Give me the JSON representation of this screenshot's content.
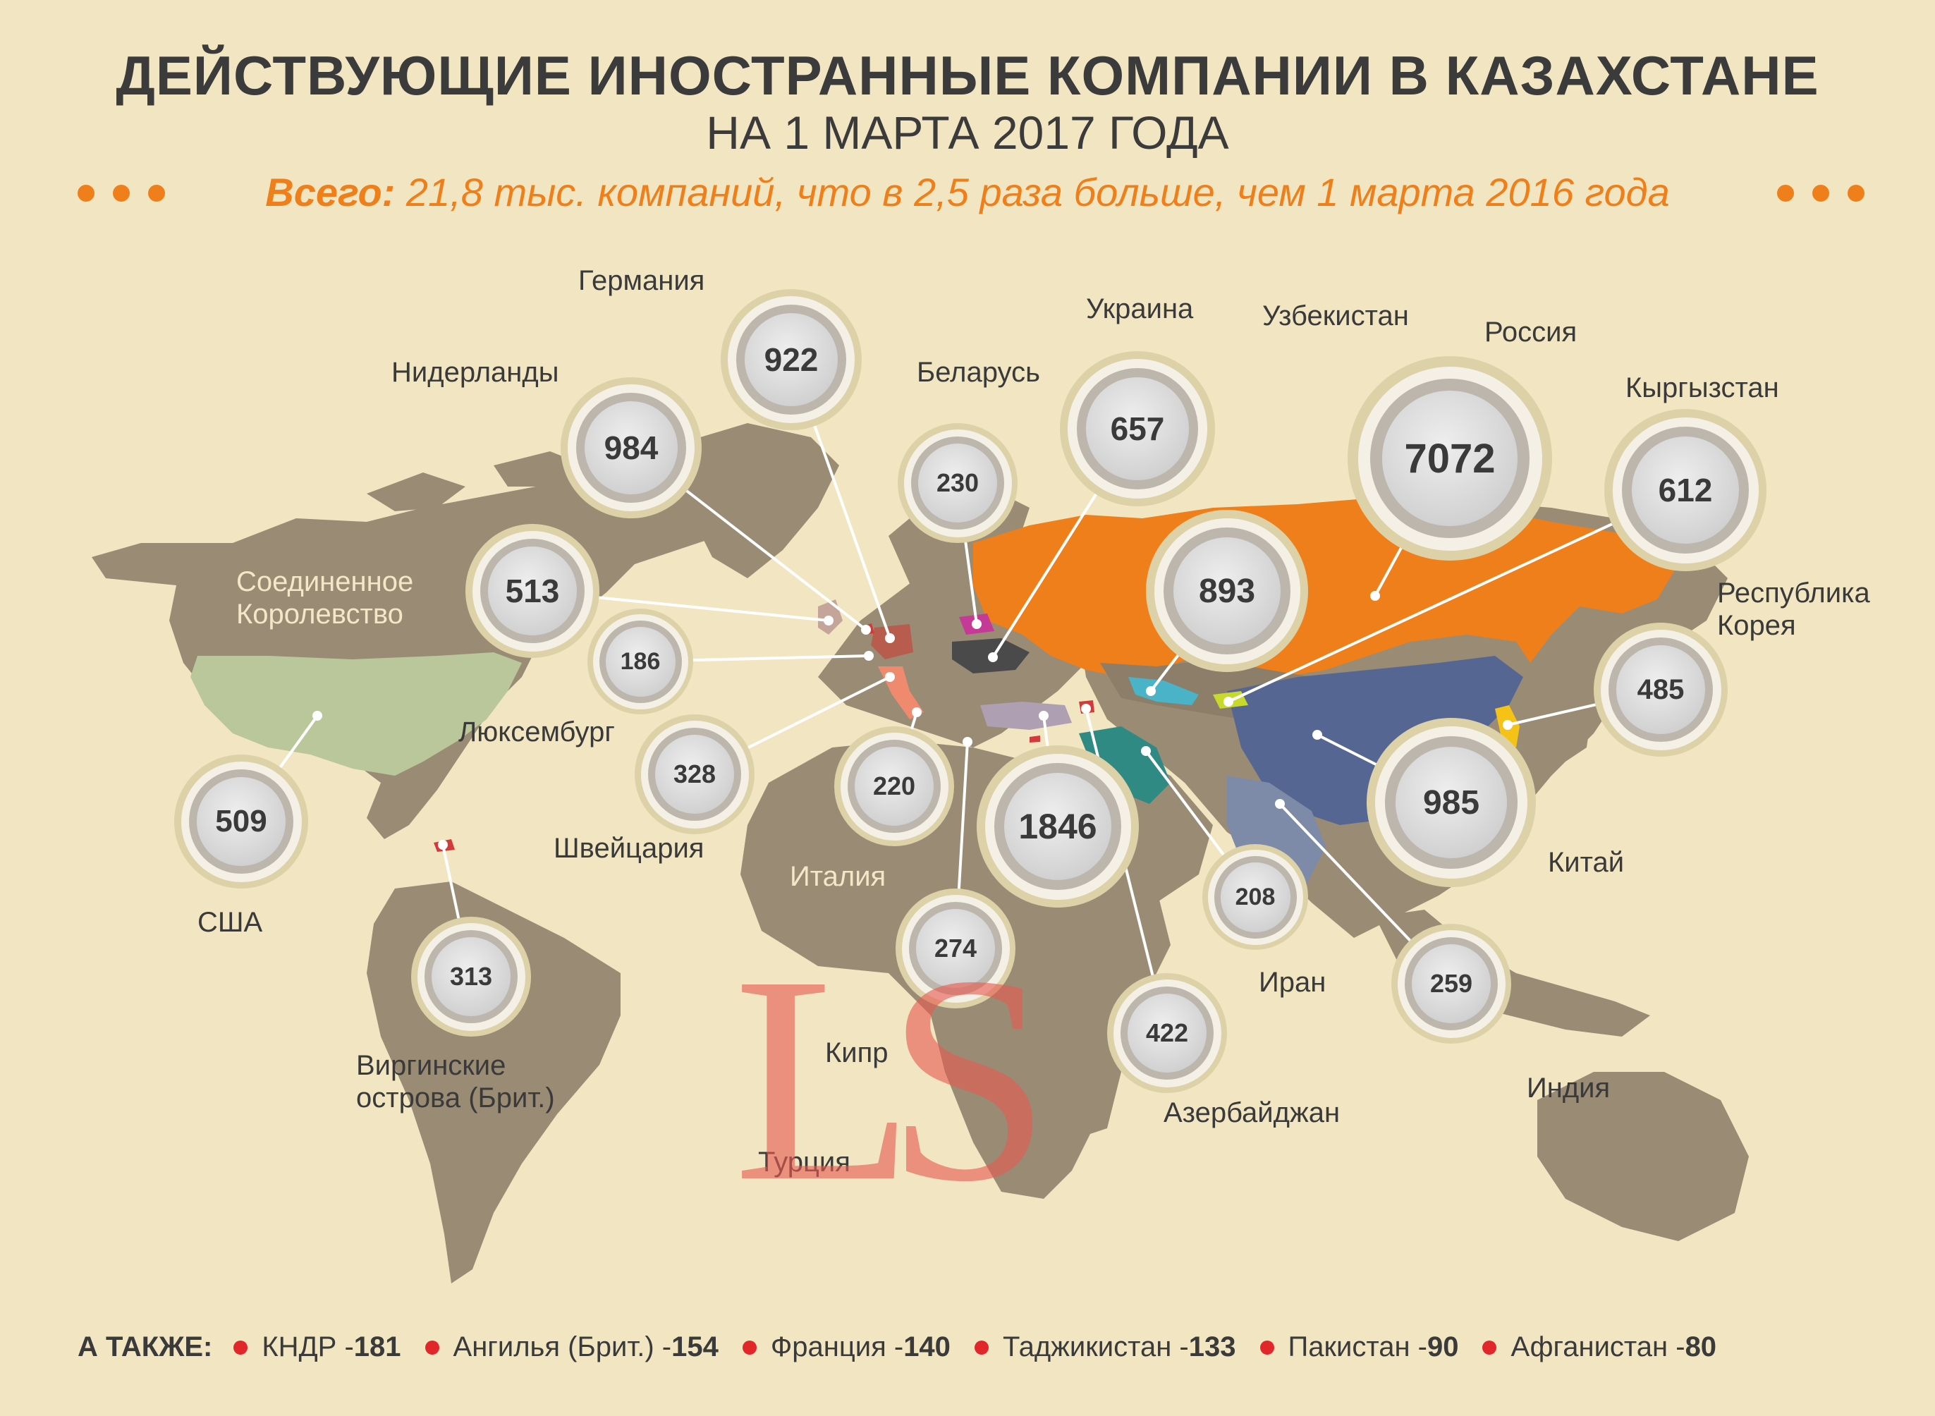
{
  "title": "ДЕЙСТВУЮЩИЕ ИНОСТРАННЫЕ КОМПАНИИ В КАЗАХСТАНЕ",
  "subtitle": "НА 1 МАРТА 2017 ГОДА",
  "total_lead": "Всего:",
  "total_text": " 21,8 тыс. компаний, что в 2,5 раза больше, чем 1 марта 2016 года",
  "watermark": "LS",
  "colors": {
    "background": "#f2e6c2",
    "land": "#9a8b74",
    "russia": "#ef7f1a",
    "accent_orange": "#ef7f1a",
    "usa": "#b9c79a",
    "china": "#566693",
    "india": "#7d8aa8",
    "iran": "#2f8a84",
    "uzbekistan": "#4bb3c7",
    "kyrgyzstan": "#c7d92b",
    "korea": "#f5c318",
    "belarus": "#c43a96",
    "ukraine": "#4a4a4a",
    "turkey": "#ae9fb2",
    "italy": "#f08a6f",
    "red_marker": "#e2272b"
  },
  "countries": [
    {
      "name": "Германия",
      "value": "922",
      "color_key": "land"
    },
    {
      "name": "Нидерланды",
      "value": "984",
      "color_key": "land"
    },
    {
      "name": "Беларусь",
      "value": "230",
      "color_key": "belarus"
    },
    {
      "name": "Украина",
      "value": "657",
      "color_key": "ukraine"
    },
    {
      "name": "Узбекистан",
      "value": "893",
      "color_key": "uzbekistan"
    },
    {
      "name": "Россия",
      "value": "7072",
      "color_key": "russia"
    },
    {
      "name": "Кыргызстан",
      "value": "612",
      "color_key": "kyrgyzstan"
    },
    {
      "name": "Республика\nКорея",
      "value": "485",
      "color_key": "korea"
    },
    {
      "name": "Соединенное\nКоролевство",
      "value": "513",
      "color_key": "land"
    },
    {
      "name": "Люксембург",
      "value": "186",
      "color_key": "land"
    },
    {
      "name": "Швейцария",
      "value": "328",
      "color_key": "land"
    },
    {
      "name": "Италия",
      "value": "220",
      "color_key": "italy"
    },
    {
      "name": "Турция",
      "value": "1846",
      "color_key": "turkey"
    },
    {
      "name": "Китай",
      "value": "985",
      "color_key": "china"
    },
    {
      "name": "США",
      "value": "509",
      "color_key": "usa"
    },
    {
      "name": "Иран",
      "value": "208",
      "color_key": "iran"
    },
    {
      "name": "Кипр",
      "value": "274",
      "color_key": "red_marker"
    },
    {
      "name": "Азербайджан",
      "value": "422",
      "color_key": "red_marker"
    },
    {
      "name": "Индия",
      "value": "259",
      "color_key": "india"
    },
    {
      "name": "Виргинские\nострова (Брит.)",
      "value": "313",
      "color_key": "red_marker"
    }
  ],
  "footer": {
    "lead": "А ТАКЖЕ:",
    "items": [
      {
        "name": "КНДР - ",
        "value": "181"
      },
      {
        "name": "Ангилья (Брит.) - ",
        "value": "154"
      },
      {
        "name": "Франция - ",
        "value": "140"
      },
      {
        "name": "Таджикистан - ",
        "value": "133"
      },
      {
        "name": "Пакистан - ",
        "value": "90"
      },
      {
        "name": "Афганистан - ",
        "value": "80"
      }
    ]
  }
}
